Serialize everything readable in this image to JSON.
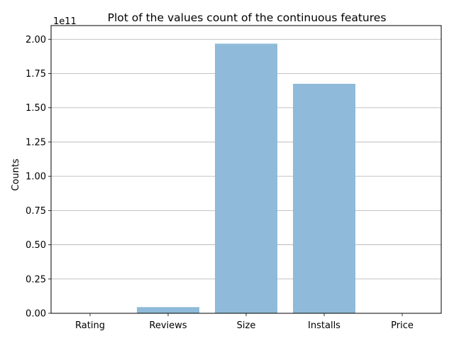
{
  "chart_data": {
    "type": "bar",
    "title": "Plot of the values count of the continuous features",
    "ylabel": "Counts",
    "xlabel": "",
    "offset_label": "1e11",
    "scale": 100000000000,
    "categories": [
      "Rating",
      "Reviews",
      "Size",
      "Installs",
      "Price"
    ],
    "values": [
      0,
      4500000000,
      196800000000,
      167500000000,
      0
    ],
    "ylim": [
      0,
      210000000000
    ],
    "yticks": [
      0.0,
      0.25,
      0.5,
      0.75,
      1.0,
      1.25,
      1.5,
      1.75,
      2.0
    ],
    "ytick_labels": [
      "0.00",
      "0.25",
      "0.50",
      "0.75",
      "1.00",
      "1.25",
      "1.50",
      "1.75",
      "2.00"
    ],
    "grid": "y",
    "bar_color": "#8fbad9"
  }
}
